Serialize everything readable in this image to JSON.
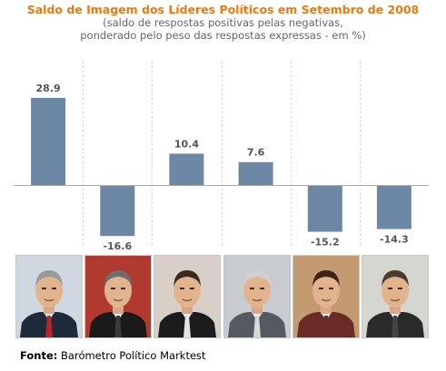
{
  "header": {
    "title": "Saldo de Imagem dos Líderes Políticos em Setembro de 2008",
    "subtitle_line1": "(saldo de respostas positivas pelas negativas,",
    "subtitle_line2": "ponderado pelo peso das respostas expressas - em %)"
  },
  "colors": {
    "title": "#e87a10",
    "bar": "#6c88a4",
    "zero_line": "#aaaaaa",
    "grid": "#cccccc",
    "background": "#ffffff"
  },
  "chart_data": {
    "type": "bar",
    "title": "Saldo de Imagem dos Líderes Políticos em Setembro de 2008",
    "subtitle": "(saldo de respostas positivas pelas negativas, ponderado pelo peso das respostas expressas - em %)",
    "categories": [
      "",
      "",
      "",
      "",
      "",
      ""
    ],
    "values": [
      28.9,
      -16.6,
      10.4,
      7.6,
      -15.2,
      -14.3
    ],
    "value_labels": [
      "28.9",
      "-16.6",
      "10.4",
      "7.6",
      "-15.2",
      "-14.3"
    ],
    "ylim": [
      -20,
      40
    ],
    "grid": "vertical dashed separators",
    "legend": "none",
    "xlabel": "",
    "ylabel": ""
  },
  "portraits": [
    {
      "icon": "portrait-photo-icon",
      "hair": "#9a9a9a",
      "suit": "#1e2a3a",
      "tie": "#b0282c",
      "bg": "#cfd8e0"
    },
    {
      "icon": "portrait-photo-icon",
      "hair": "#6e6e6e",
      "suit": "#1a1a1a",
      "tie": "#3a3a3a",
      "bg": "#b03a30"
    },
    {
      "icon": "portrait-photo-icon",
      "hair": "#3a2a20",
      "suit": "#1c1c1c",
      "tie": "#e4e4e4",
      "bg": "#d8d0c8"
    },
    {
      "icon": "portrait-photo-icon",
      "hair": "#d0d0d0",
      "suit": "#555a60",
      "tie": "#d8d8d8",
      "bg": "#c8ccd0"
    },
    {
      "icon": "portrait-photo-icon",
      "hair": "#3a2418",
      "suit": "#6a2a28",
      "tie": "#6a2a28",
      "bg": "#c49a70"
    },
    {
      "icon": "portrait-photo-icon",
      "hair": "#4a3a30",
      "suit": "#2a2a2a",
      "tie": "#444444",
      "bg": "#d6d6d0"
    }
  ],
  "footer": {
    "source_label": "Fonte:",
    "source_text": "Barómetro Político Marktest"
  }
}
